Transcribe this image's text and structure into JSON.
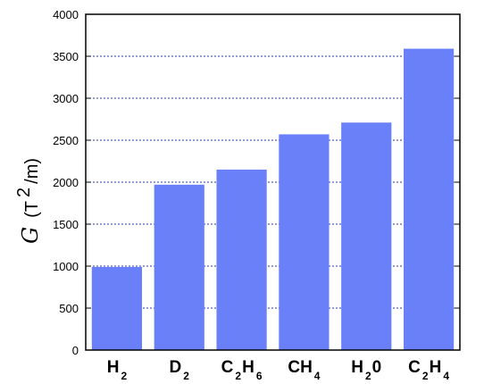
{
  "chart_data": {
    "type": "bar",
    "categories": [
      {
        "base": "H",
        "sub": "2"
      },
      {
        "base": "D",
        "sub": "2"
      },
      {
        "base": "C",
        "sub": "2",
        "base2": "H",
        "sub2": "6"
      },
      {
        "base": "CH",
        "sub": "4"
      },
      {
        "base": "H",
        "sub": "2",
        "base2": "0"
      },
      {
        "base": "C",
        "sub": "2",
        "base2": "H",
        "sub2": "4"
      }
    ],
    "values": [
      990,
      1970,
      2150,
      2570,
      2710,
      3590
    ],
    "ylabel": {
      "symbol": "G",
      "unit_prefix": "(T",
      "unit_sup": "2",
      "unit_suffix": "/m)"
    },
    "ylim": [
      0,
      4000
    ],
    "yticks": [
      0,
      500,
      1000,
      1500,
      2000,
      2500,
      3000,
      3500,
      4000
    ],
    "grid": "horizontal dotted",
    "bar_color": "#6a80f8",
    "grid_color": "#2a3ab0"
  }
}
